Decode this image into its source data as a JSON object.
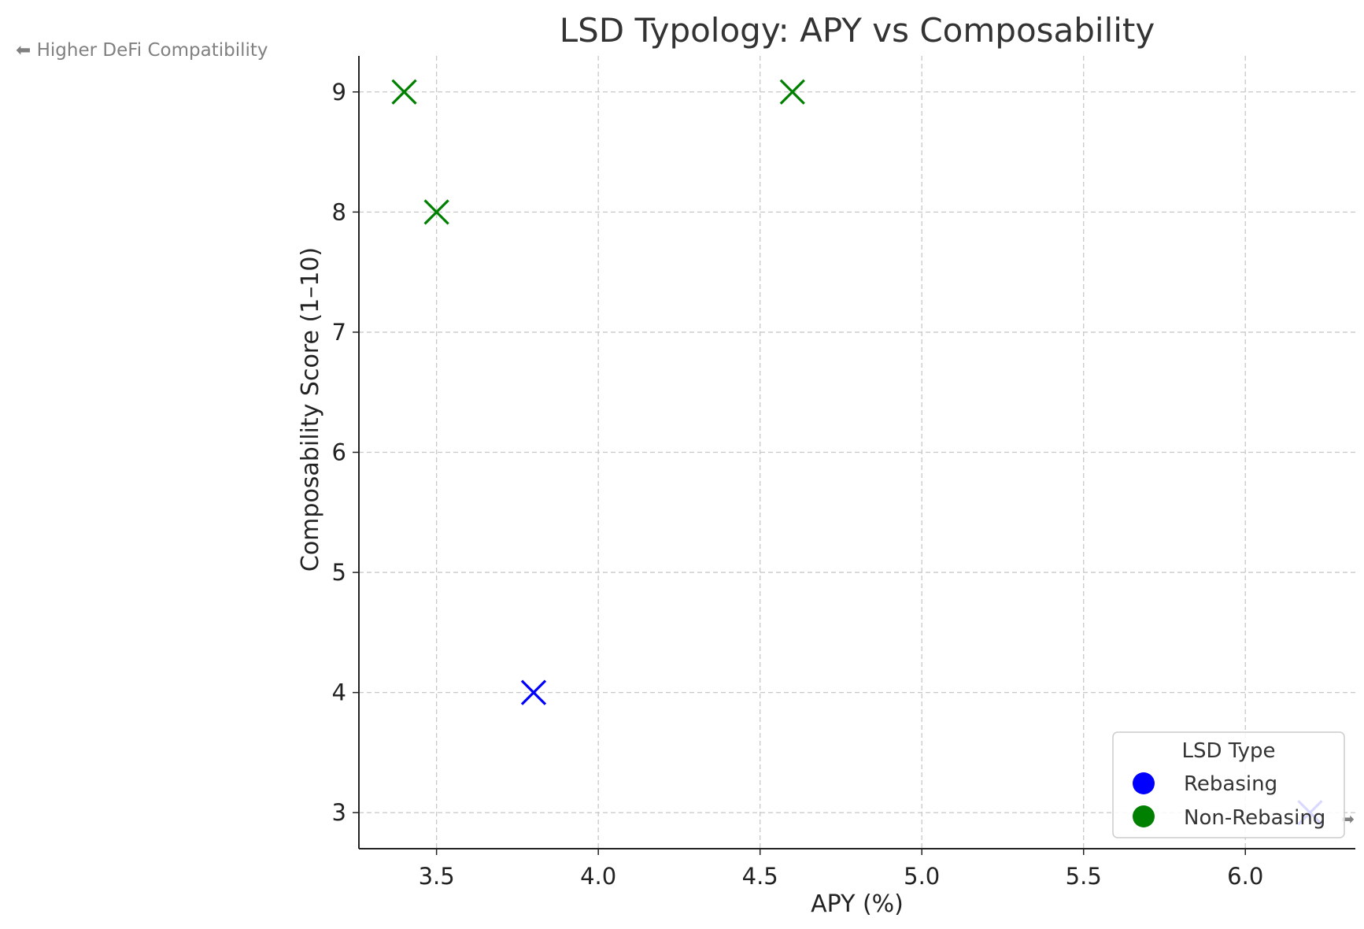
{
  "chart_data": {
    "type": "scatter",
    "title": "LSD Typology: APY vs Composability",
    "xlabel": "APY (%)",
    "ylabel": "Composability Score (1–10)",
    "xlim": [
      3.26,
      6.34
    ],
    "ylim": [
      2.7,
      9.3
    ],
    "xticks": [
      3.5,
      4.0,
      4.5,
      5.0,
      5.5,
      6.0
    ],
    "xtick_labels": [
      "3.5",
      "4.0",
      "4.5",
      "5.0",
      "5.5",
      "6.0"
    ],
    "yticks": [
      3,
      4,
      5,
      6,
      7,
      8,
      9
    ],
    "ytick_labels": [
      "3",
      "4",
      "5",
      "6",
      "7",
      "8",
      "9"
    ],
    "grid": true,
    "marker": "x",
    "legend": {
      "title": "LSD Type",
      "placement": "bottom-right",
      "entries": [
        "Rebasing",
        "Non-Rebasing"
      ]
    },
    "series": [
      {
        "name": "Rebasing",
        "color": "#0000ff",
        "points": [
          {
            "x": 3.8,
            "y": 4
          },
          {
            "x": 6.2,
            "y": 3
          }
        ]
      },
      {
        "name": "Non-Rebasing",
        "color": "#008000",
        "points": [
          {
            "x": 3.4,
            "y": 9
          },
          {
            "x": 3.5,
            "y": 8
          },
          {
            "x": 4.6,
            "y": 9
          }
        ]
      }
    ],
    "annotations": [
      {
        "text": "⬅ Higher DeFi Compatibility"
      },
      {
        "text": "➡"
      }
    ]
  }
}
